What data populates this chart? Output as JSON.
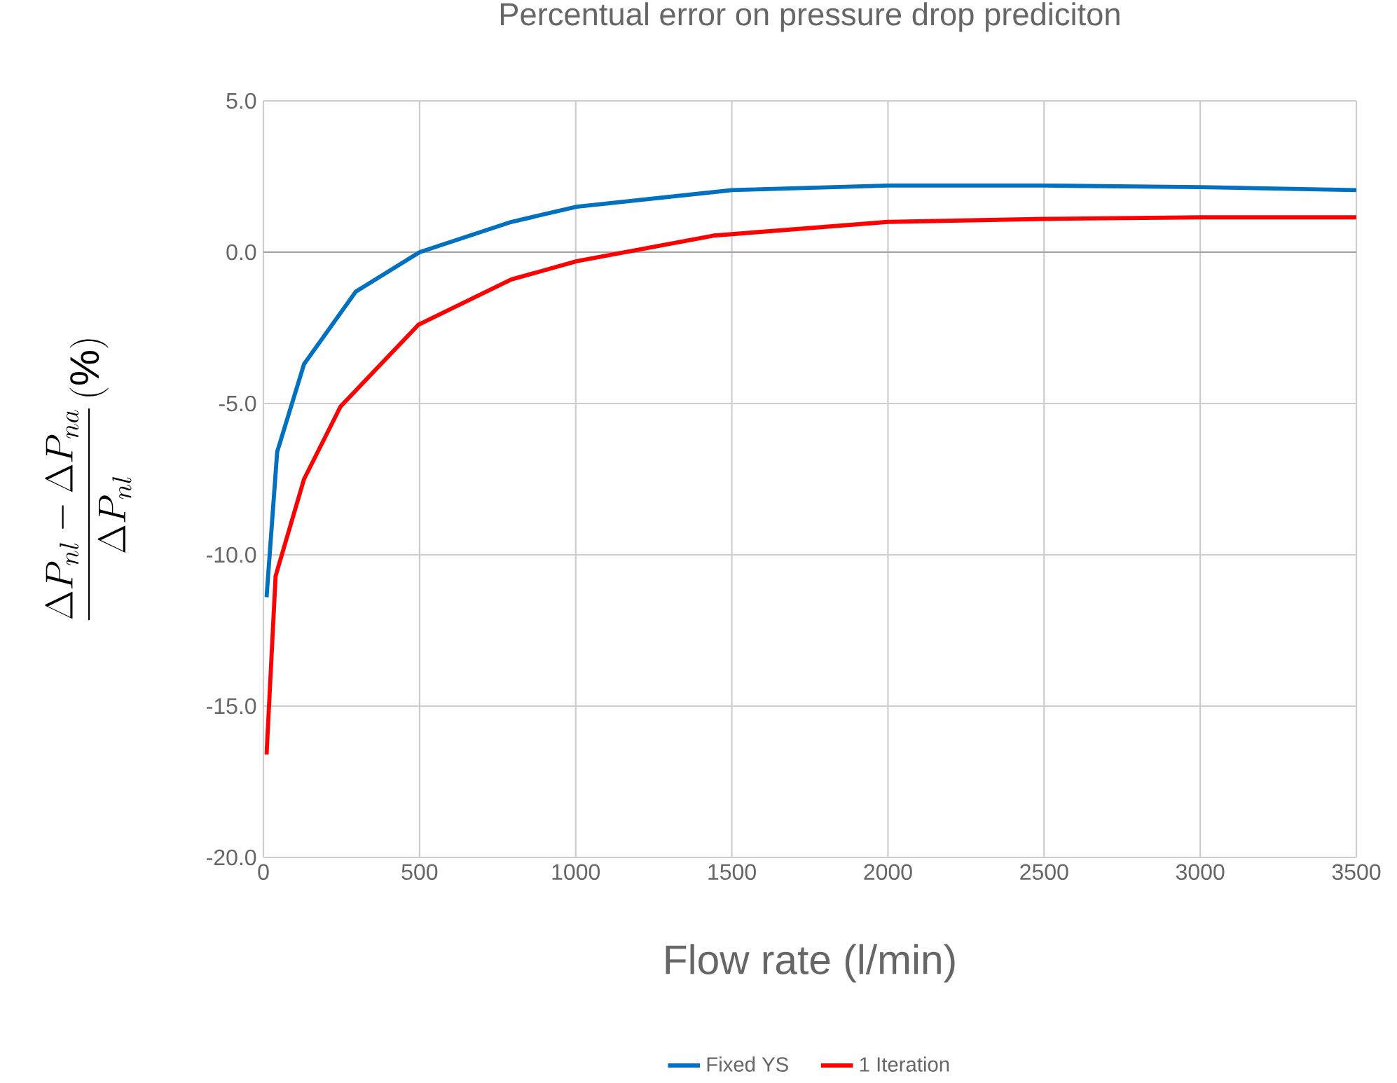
{
  "chart_data": {
    "type": "line",
    "title": "Percentual error on pressure drop prediciton",
    "xlabel": "Flow rate (l/min)",
    "ylabel": "\\frac{\\Delta P_{nl}-\\Delta P_{na}}{\\Delta P_{nl}}\\,(\\%)",
    "xlim": [
      0,
      3500
    ],
    "xticks": [
      0,
      500,
      1000,
      1500,
      2000,
      2500,
      3000,
      3500
    ],
    "ylim": [
      -20,
      5
    ],
    "yticks": [
      {
        "value": -20,
        "label": "-20.0"
      },
      {
        "value": -15,
        "label": "-15.0"
      },
      {
        "value": -10,
        "label": "-10.0"
      },
      {
        "value": -5,
        "label": "-5.0"
      },
      {
        "value": 0,
        "label": "0.0"
      },
      {
        "value": 5,
        "label": "5.0"
      }
    ],
    "grid": true,
    "legend": "bottom",
    "marker": "none",
    "line_style": "solid",
    "series": [
      {
        "name": "Fixed YS",
        "color": "#0070c0",
        "x": [
          10,
          44,
          130,
          296,
          500,
          794,
          1003,
          1500,
          2000,
          2500,
          3000,
          3500
        ],
        "values": [
          -11.4,
          -6.6,
          -3.7,
          -1.3,
          0.0,
          1.0,
          1.5,
          2.05,
          2.2,
          2.2,
          2.15,
          2.05
        ]
      },
      {
        "name": "1 Iteration",
        "color": "#ff0000",
        "x": [
          10,
          39,
          130,
          247,
          496,
          794,
          1003,
          1443,
          2000,
          2500,
          3000,
          3500
        ],
        "values": [
          -16.6,
          -10.7,
          -7.5,
          -5.1,
          -2.4,
          -0.9,
          -0.3,
          0.55,
          1.0,
          1.1,
          1.15,
          1.15
        ]
      }
    ]
  }
}
